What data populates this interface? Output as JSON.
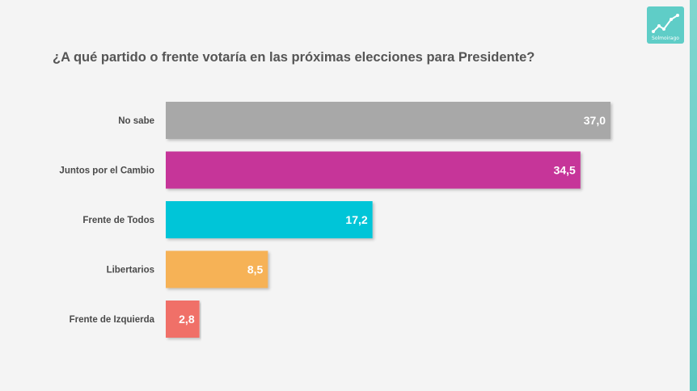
{
  "logo": {
    "text": "Solmoirago",
    "icon": "rising-line-chart-icon",
    "color": "#5fcdc7"
  },
  "chart_data": {
    "type": "bar",
    "orientation": "horizontal",
    "title": "¿A qué partido o frente votaría en las próximas elecciones para Presidente?",
    "categories": [
      "No sabe",
      "Juntos por el Cambio",
      "Frente de Todos",
      "Libertarios",
      "Frente de Izquierda"
    ],
    "values": [
      37.0,
      34.5,
      17.2,
      8.5,
      2.8
    ],
    "value_labels": [
      "37,0",
      "34,5",
      "17,2",
      "8,5",
      "2,8"
    ],
    "colors": [
      "#a8a8a8",
      "#c63699",
      "#00c5d8",
      "#f6b257",
      "#f07068"
    ],
    "xlim": [
      0,
      37.0
    ],
    "grid": false,
    "legend": "none"
  }
}
